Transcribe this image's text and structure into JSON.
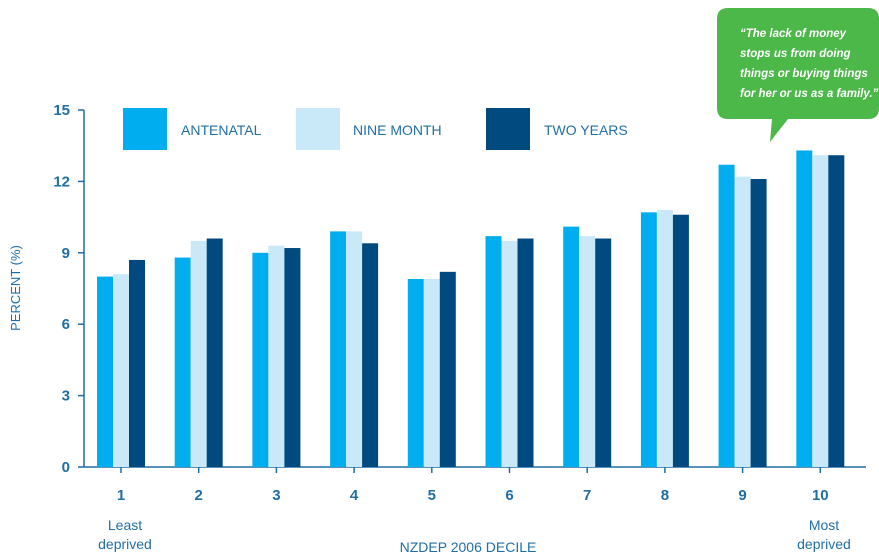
{
  "chart_data": {
    "type": "bar",
    "title": "",
    "xlabel": "NZDEP 2006 DECILE",
    "ylabel": "PERCENT (%)",
    "ylim": [
      0,
      15
    ],
    "yticks": [
      0,
      3,
      6,
      9,
      12,
      15
    ],
    "grid": false,
    "legend_position": "top",
    "categories": [
      "1",
      "2",
      "3",
      "4",
      "5",
      "6",
      "7",
      "8",
      "9",
      "10"
    ],
    "category_sublabels": {
      "first": [
        "Least",
        "deprived"
      ],
      "last": [
        "Most",
        "deprived"
      ]
    },
    "series": [
      {
        "name": "ANTENATAL",
        "color": "#00aeef",
        "values": [
          8.0,
          8.8,
          9.0,
          9.9,
          7.9,
          9.7,
          10.1,
          10.7,
          12.7,
          13.3
        ]
      },
      {
        "name": "NINE MONTH",
        "color": "#c9e8f8",
        "values": [
          8.1,
          9.5,
          9.3,
          9.9,
          7.9,
          9.5,
          9.7,
          10.8,
          12.2,
          13.1
        ]
      },
      {
        "name": "TWO YEARS",
        "color": "#004a80",
        "values": [
          8.7,
          9.6,
          9.2,
          9.4,
          8.2,
          9.6,
          9.6,
          10.6,
          12.1,
          13.1
        ]
      }
    ],
    "annotation": {
      "lines": [
        "“The lack of money",
        "stops us from doing",
        "things or buying things",
        "for her or us as a family.”"
      ],
      "color": "#4cb849"
    }
  },
  "colors": {
    "axis": "#1f6fa6"
  }
}
